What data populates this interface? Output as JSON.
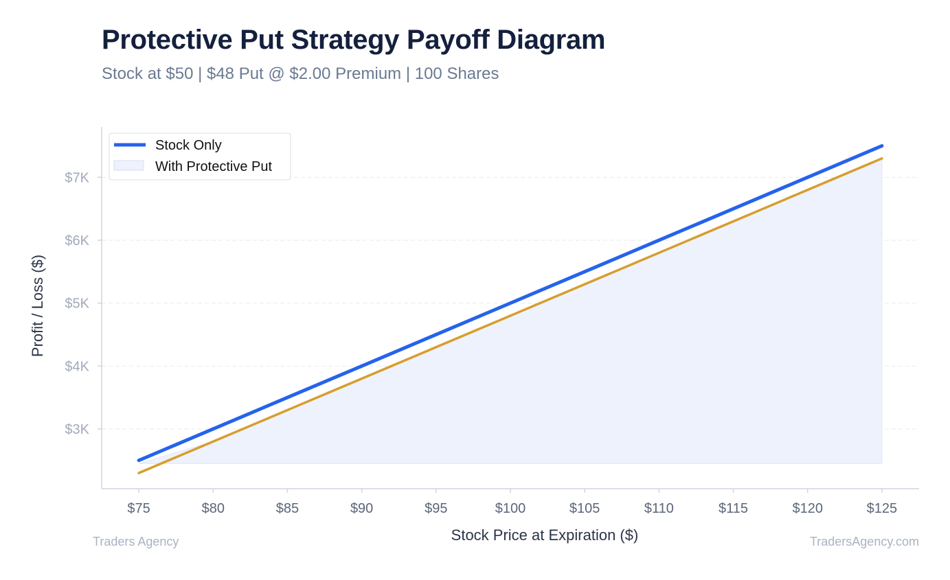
{
  "header": {
    "title": "Protective Put Strategy Payoff Diagram",
    "subtitle": "Stock at $50 | $48 Put @ $2.00 Premium | 100 Shares"
  },
  "footer": {
    "left": "Traders Agency",
    "right": "TradersAgency.com"
  },
  "colors": {
    "stock_line": "#2563eb",
    "protective_line": "#d69e2e",
    "fill": "#eef2fd",
    "axis": "#cfd6e0",
    "grid": "#e5e9f0",
    "ytick": "#a0aabb",
    "xtick": "#5b6679"
  },
  "chart_data": {
    "type": "line",
    "title": "Protective Put Strategy Payoff Diagram",
    "subtitle": "Stock at $50 | $48 Put @ $2.00 Premium | 100 Shares",
    "xlabel": "Stock Price at Expiration ($)",
    "ylabel": "Profit / Loss ($)",
    "x": [
      75,
      80,
      85,
      90,
      95,
      100,
      105,
      110,
      115,
      120,
      125
    ],
    "x_tick_labels": [
      "$75",
      "$80",
      "$85",
      "$90",
      "$95",
      "$100",
      "$105",
      "$110",
      "$115",
      "$120",
      "$125"
    ],
    "y_ticks": [
      3000,
      4000,
      5000,
      6000,
      7000
    ],
    "y_tick_labels": [
      "$3K",
      "$4K",
      "$5K",
      "$6K",
      "$7K"
    ],
    "xlim": [
      72.5,
      127.5
    ],
    "ylim": [
      2050,
      7800
    ],
    "grid": true,
    "legend_position": "top-left",
    "series": [
      {
        "name": "Stock Only",
        "values": [
          2500,
          3000,
          3500,
          4000,
          4500,
          5000,
          5500,
          6000,
          6500,
          7000,
          7500
        ]
      },
      {
        "name": "With Protective Put",
        "values": [
          2300,
          2800,
          3300,
          3800,
          4300,
          4800,
          5300,
          5800,
          6300,
          6800,
          7300
        ],
        "fill_baseline": 2450
      }
    ]
  }
}
